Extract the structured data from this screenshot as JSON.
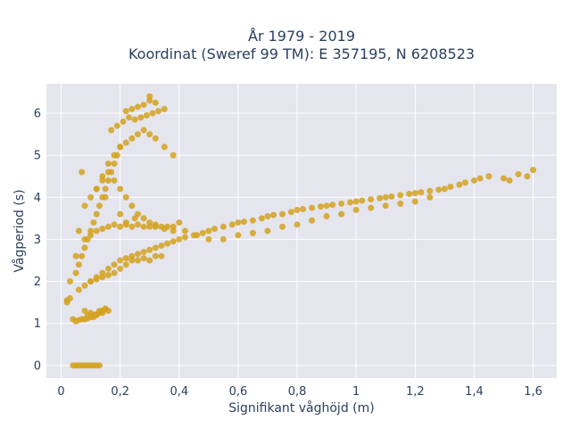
{
  "title_lines": [
    "År 1979 - 2019",
    "Koordinat (Sweref 99 TM): E 357195, N 6208523"
  ],
  "chart_data": {
    "type": "scatter",
    "title": "År 1979 - 2019 / Koordinat (Sweref 99 TM): E 357195, N 6208523",
    "xlabel": "Signifikant våghöjd (m)",
    "ylabel": "Vågperiod (s)",
    "xlim": [
      -0.05,
      1.68
    ],
    "ylim": [
      -0.3,
      6.7
    ],
    "x_ticks": [
      0,
      0.2,
      0.4,
      0.6,
      0.8,
      1.0,
      1.2,
      1.4,
      1.6
    ],
    "x_tick_labels": [
      "0",
      "0,2",
      "0,4",
      "0,6",
      "0,8",
      "1",
      "1,2",
      "1,4",
      "1,6"
    ],
    "y_ticks": [
      0,
      1,
      2,
      3,
      4,
      5,
      6
    ],
    "y_tick_labels": [
      "0",
      "1",
      "2",
      "3",
      "4",
      "5",
      "6"
    ],
    "grid": true,
    "marker_color": "#d4a21f",
    "plot_background": "#e5e5ee",
    "series": [
      {
        "x": [
          0.04,
          0.05,
          0.06,
          0.07,
          0.08,
          0.09,
          0.1,
          0.11,
          0.12,
          0.13,
          0.02,
          0.02,
          0.03,
          0.03,
          0.04,
          0.05,
          0.05,
          0.06,
          0.06,
          0.07,
          0.07,
          0.08,
          0.09,
          0.1,
          0.11,
          0.12,
          0.13,
          0.14,
          0.15,
          0.05,
          0.06,
          0.07,
          0.08,
          0.09,
          0.1,
          0.11,
          0.12,
          0.13,
          0.14,
          0.15,
          0.16,
          0.17,
          0.18,
          0.19,
          0.2,
          0.06,
          0.08,
          0.1,
          0.12,
          0.14,
          0.16,
          0.18,
          0.2,
          0.22,
          0.24,
          0.26,
          0.28,
          0.3,
          0.32,
          0.34,
          0.36,
          0.38,
          0.4,
          0.42,
          0.45,
          0.48,
          0.5,
          0.52,
          0.55,
          0.58,
          0.6,
          0.62,
          0.65,
          0.68,
          0.7,
          0.72,
          0.75,
          0.78,
          0.8,
          0.82,
          0.85,
          0.88,
          0.9,
          0.92,
          0.95,
          0.98,
          1.0,
          1.02,
          1.05,
          1.08,
          1.1,
          1.12,
          1.15,
          1.18,
          1.2,
          1.22,
          1.25,
          1.28,
          1.3,
          1.32,
          1.35,
          1.37,
          1.4,
          1.42,
          1.45,
          1.5,
          1.52,
          1.55,
          1.58,
          1.6,
          0.08,
          0.1,
          0.12,
          0.14,
          0.16,
          0.18,
          0.2,
          0.22,
          0.24,
          0.26,
          0.28,
          0.3,
          0.32,
          0.34,
          0.36,
          0.38,
          0.4,
          0.1,
          0.12,
          0.14,
          0.16,
          0.18,
          0.2,
          0.22,
          0.24,
          0.26,
          0.28,
          0.3,
          0.32,
          0.34,
          0.12,
          0.14,
          0.16,
          0.18,
          0.2,
          0.22,
          0.24,
          0.26,
          0.28,
          0.3,
          0.32,
          0.35,
          0.38,
          0.17,
          0.19,
          0.21,
          0.23,
          0.25,
          0.27,
          0.29,
          0.31,
          0.33,
          0.35,
          0.22,
          0.24,
          0.26,
          0.28,
          0.3,
          0.32,
          0.3,
          0.15,
          0.2,
          0.22,
          0.25,
          0.08,
          0.09,
          0.1,
          0.11,
          0.12,
          0.13,
          0.14,
          0.15,
          0.16,
          0.08,
          0.1,
          0.12,
          0.14,
          0.16,
          0.18,
          0.2,
          0.22,
          0.24,
          0.26,
          0.28,
          0.3,
          0.32,
          0.35,
          0.38,
          0.42,
          0.46,
          0.5,
          0.55,
          0.6,
          0.65,
          0.7,
          0.75,
          0.8,
          0.85,
          0.9,
          0.95,
          1.0,
          1.05,
          1.1,
          1.15,
          1.2,
          1.25
        ],
        "y": [
          0.0,
          0.0,
          0.0,
          0.0,
          0.0,
          0.0,
          0.0,
          0.0,
          0.0,
          0.0,
          1.55,
          1.5,
          1.6,
          2.0,
          1.1,
          1.05,
          2.6,
          1.08,
          3.2,
          1.1,
          4.6,
          1.1,
          1.12,
          1.15,
          1.2,
          1.22,
          1.25,
          1.3,
          1.35,
          2.2,
          2.4,
          2.6,
          2.8,
          3.0,
          3.2,
          3.4,
          3.6,
          3.8,
          4.0,
          4.2,
          4.4,
          4.6,
          4.8,
          5.0,
          5.2,
          1.8,
          1.9,
          2.0,
          2.1,
          2.2,
          2.3,
          2.4,
          2.5,
          2.55,
          2.6,
          2.65,
          2.7,
          2.75,
          2.8,
          2.85,
          2.9,
          2.95,
          3.0,
          3.05,
          3.1,
          3.15,
          3.2,
          3.25,
          3.3,
          3.35,
          3.4,
          3.42,
          3.45,
          3.5,
          3.55,
          3.58,
          3.6,
          3.65,
          3.7,
          3.72,
          3.75,
          3.78,
          3.8,
          3.82,
          3.85,
          3.88,
          3.9,
          3.92,
          3.95,
          3.98,
          4.0,
          4.02,
          4.05,
          4.08,
          4.1,
          4.12,
          4.15,
          4.18,
          4.2,
          4.25,
          4.3,
          4.35,
          4.4,
          4.45,
          4.5,
          4.45,
          4.4,
          4.55,
          4.5,
          4.65,
          3.0,
          3.1,
          3.2,
          3.25,
          3.3,
          3.35,
          3.3,
          3.35,
          3.3,
          3.35,
          3.3,
          3.3,
          3.35,
          3.3,
          3.3,
          3.3,
          3.4,
          2.0,
          2.05,
          2.1,
          2.15,
          2.2,
          2.3,
          2.4,
          2.5,
          2.5,
          2.55,
          2.5,
          2.6,
          2.6,
          4.2,
          4.5,
          4.8,
          5.0,
          5.2,
          5.3,
          5.4,
          5.5,
          5.6,
          5.5,
          5.4,
          5.2,
          5.0,
          5.6,
          5.7,
          5.8,
          5.9,
          5.85,
          5.9,
          5.95,
          6.0,
          6.05,
          6.1,
          6.05,
          6.1,
          6.15,
          6.2,
          6.3,
          6.25,
          6.4,
          4.0,
          3.6,
          3.4,
          3.5,
          1.3,
          1.2,
          1.25,
          1.15,
          1.2,
          1.3,
          1.25,
          1.35,
          1.3,
          3.8,
          4.0,
          4.2,
          4.4,
          4.6,
          4.4,
          4.2,
          4.0,
          3.8,
          3.6,
          3.5,
          3.4,
          3.3,
          3.25,
          3.2,
          3.2,
          3.1,
          3.0,
          3.0,
          3.1,
          3.15,
          3.2,
          3.3,
          3.35,
          3.45,
          3.55,
          3.6,
          3.7,
          3.75,
          3.8,
          3.85,
          3.9,
          4.0
        ]
      }
    ]
  }
}
